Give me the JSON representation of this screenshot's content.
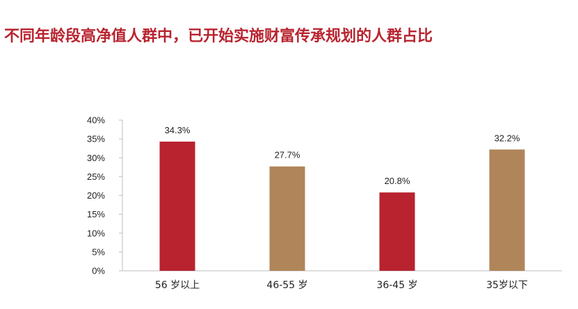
{
  "title": "不同年龄段高净值人群中，已开始实施财富传承规划的人群占比",
  "colors": {
    "title": "#b8232f",
    "primary_bar": "#b8232f",
    "secondary_bar": "#b0855a",
    "axis": "#bdbdbd"
  },
  "chart_data": {
    "type": "bar",
    "title": "",
    "xlabel": "",
    "ylabel": "",
    "categories": [
      "56 岁以上",
      "46-55 岁",
      "36-45 岁",
      "35岁以下"
    ],
    "values": [
      34.3,
      27.7,
      20.8,
      32.2
    ],
    "data_labels": [
      "34.3%",
      "27.7%",
      "20.8%",
      "32.2%"
    ],
    "bar_colors": [
      "#b8232f",
      "#b0855a",
      "#b8232f",
      "#b0855a"
    ],
    "ylim": [
      0,
      40
    ],
    "yticks": [
      "0%",
      "5%",
      "10%",
      "15%",
      "20%",
      "25%",
      "30%",
      "35%",
      "40%"
    ],
    "grid": false,
    "legend": "none"
  }
}
